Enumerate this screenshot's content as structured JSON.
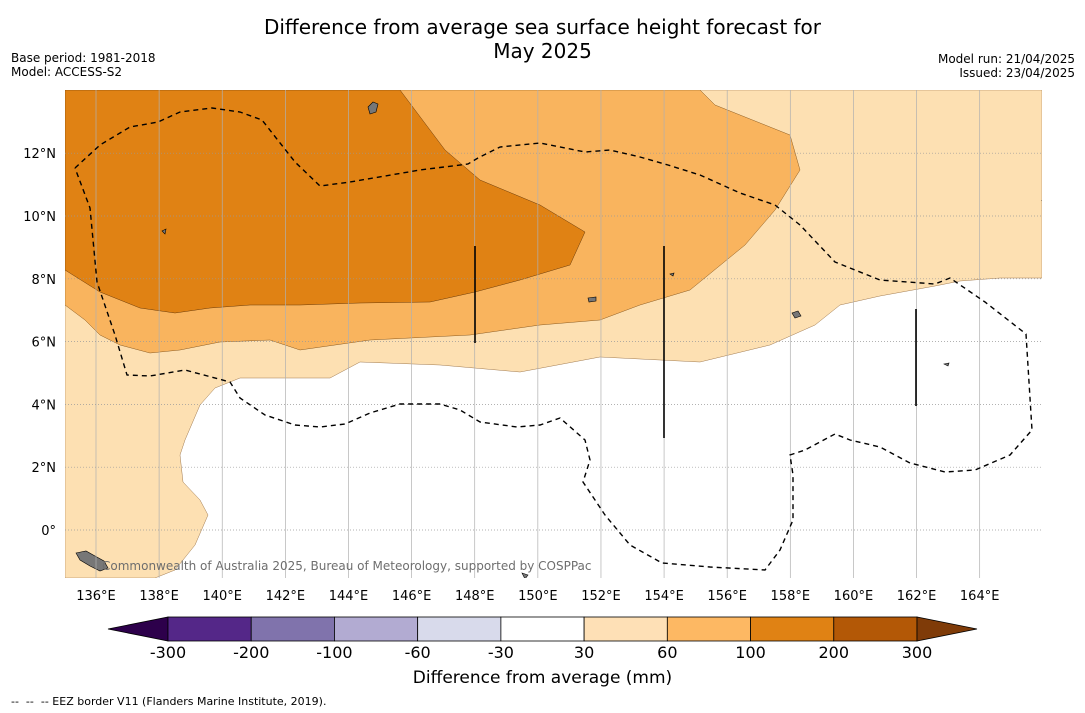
{
  "title": {
    "line1": "Difference from average sea surface height forecast for",
    "line2": "May 2025"
  },
  "meta_left": {
    "base_period": "Base period: 1981-2018",
    "model": "Model: ACCESS-S2"
  },
  "meta_right": {
    "model_run": "Model run: 21/04/2025",
    "issued": "Issued: 23/04/2025"
  },
  "map": {
    "lon_range": [
      135,
      166
    ],
    "lat_range": [
      -1.5,
      13.9
    ],
    "x_ticks": [
      "136°E",
      "138°E",
      "140°E",
      "142°E",
      "144°E",
      "146°E",
      "148°E",
      "150°E",
      "152°E",
      "154°E",
      "156°E",
      "158°E",
      "160°E",
      "162°E",
      "164°E"
    ],
    "y_ticks": [
      "0°",
      "2°N",
      "4°N",
      "6°N",
      "8°N",
      "10°N",
      "12°N"
    ],
    "grid": true,
    "watermark": "Commonwealth of Australia 2025, Bureau of Meteorology, supported by COSPPac",
    "colors": {
      "c30_60": "#fde0b2",
      "c60_100": "#f9b45e",
      "c100_200": "#e08214",
      "land": "#777777",
      "eez": "#000000"
    }
  },
  "colorbar": {
    "ticks": [
      "-300",
      "-200",
      "-100",
      "-60",
      "-30",
      "30",
      "60",
      "100",
      "200",
      "300"
    ],
    "colors": [
      "#2d004b",
      "#542788",
      "#8073ac",
      "#b2abd2",
      "#d8daeb",
      "#ffffff",
      "#fee0b6",
      "#fdb863",
      "#e08214",
      "#b35806",
      "#7f3b08"
    ],
    "label": "Difference from average (mm)"
  },
  "footnote": "--  --  -- EEZ border V11 (Flanders Marine Institute, 2019)."
}
